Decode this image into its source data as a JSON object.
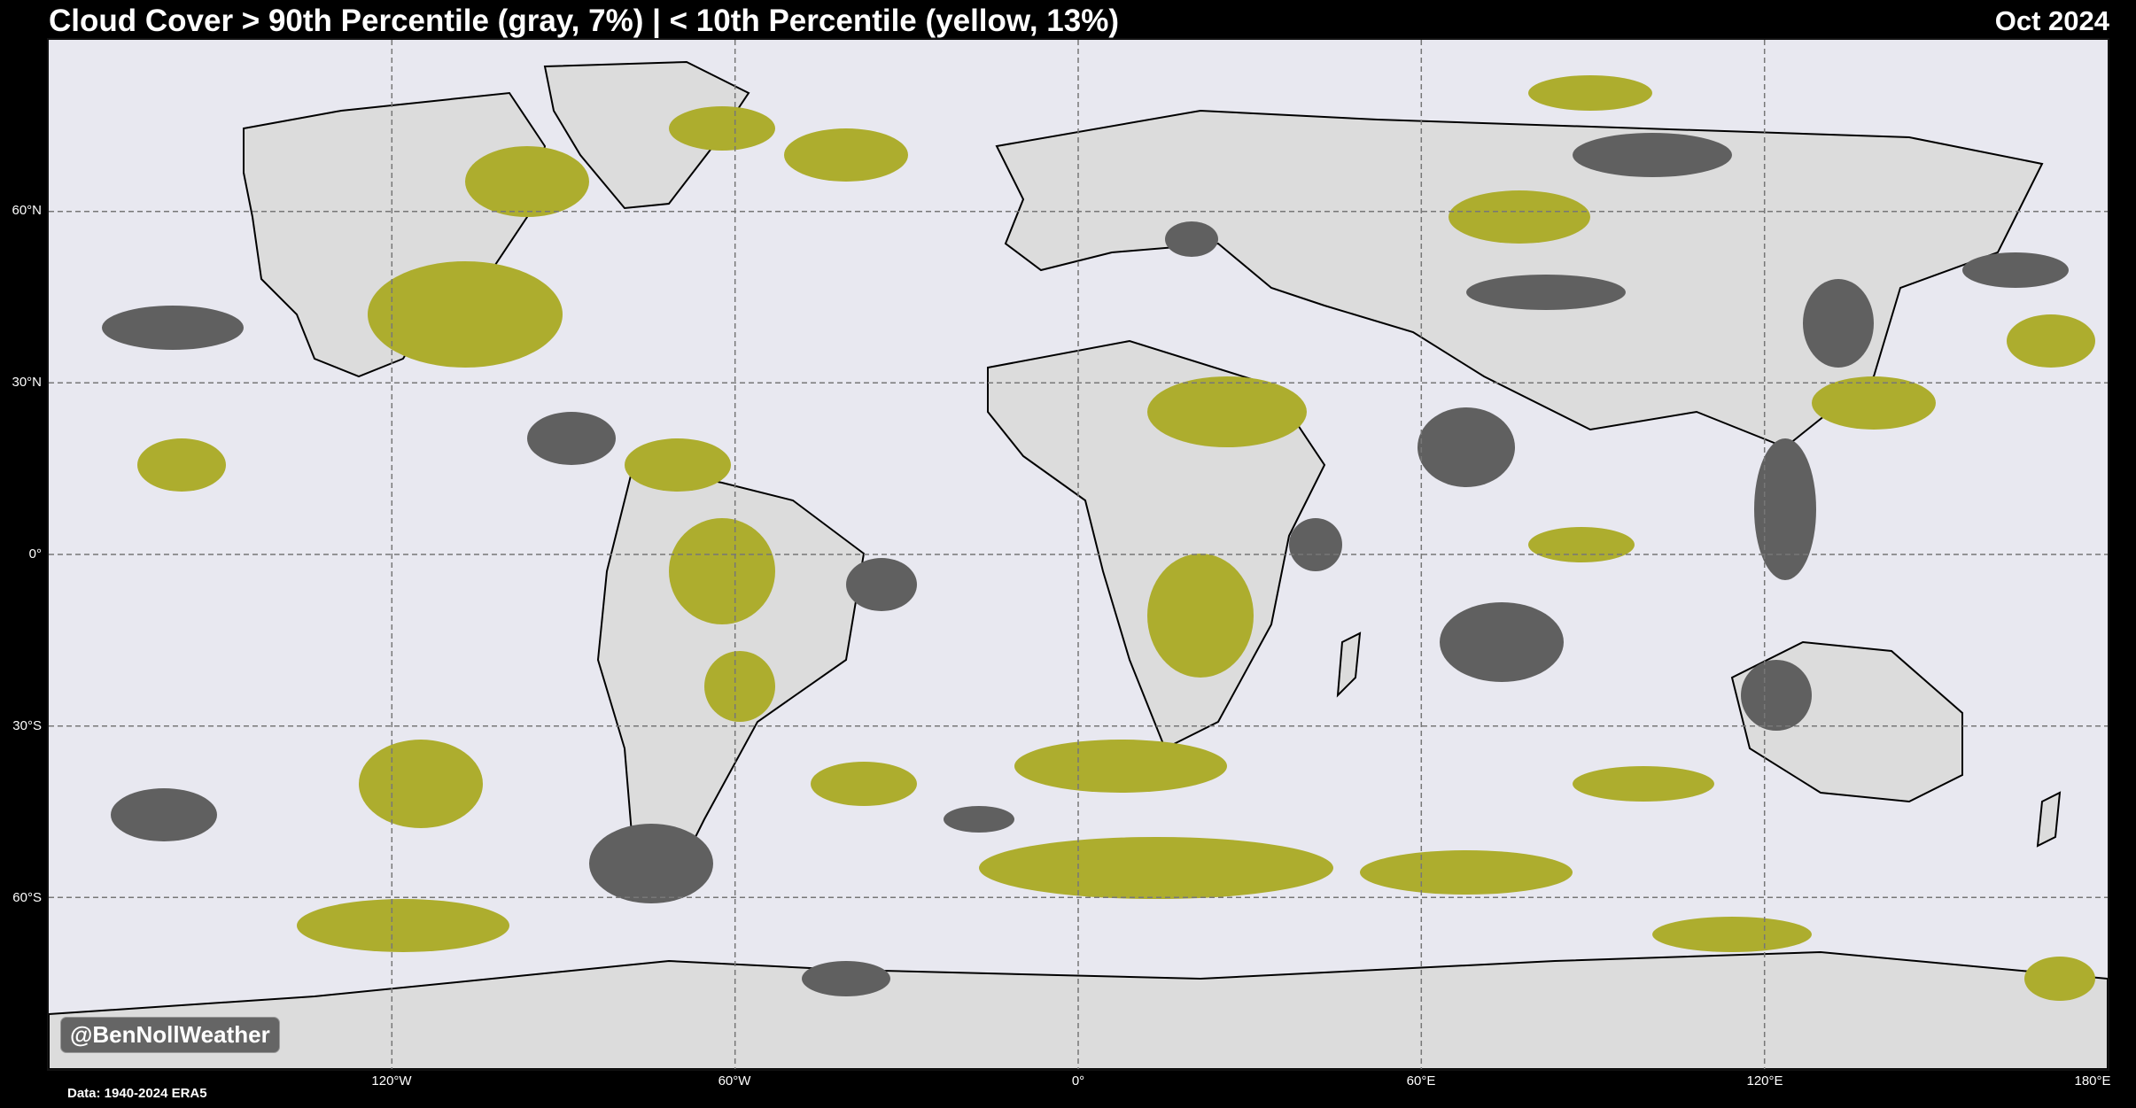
{
  "title": "Cloud Cover > 90th Percentile (gray, 7%) | < 10th Percentile (yellow, 13%)",
  "date_label": "Oct 2024",
  "watermark": "@BenNollWeather",
  "source": "Data: 1940-2024 ERA5",
  "lat_labels": [
    "60°N",
    "30°N",
    "0°",
    "30°S",
    "60°S"
  ],
  "lon_labels": [
    "120°W",
    "60°W",
    "0°",
    "60°E",
    "120°E",
    "180°E"
  ],
  "legend": {
    "above_90th": {
      "color": "#606060",
      "label": "gray",
      "percent": "7%"
    },
    "below_10th": {
      "color": "#adad2e",
      "label": "yellow",
      "percent": "13%"
    }
  },
  "colors": {
    "ocean": "#e8e8f0",
    "land": "#dcdcdc",
    "gray": "#606060",
    "yellow": "#adad2e"
  }
}
